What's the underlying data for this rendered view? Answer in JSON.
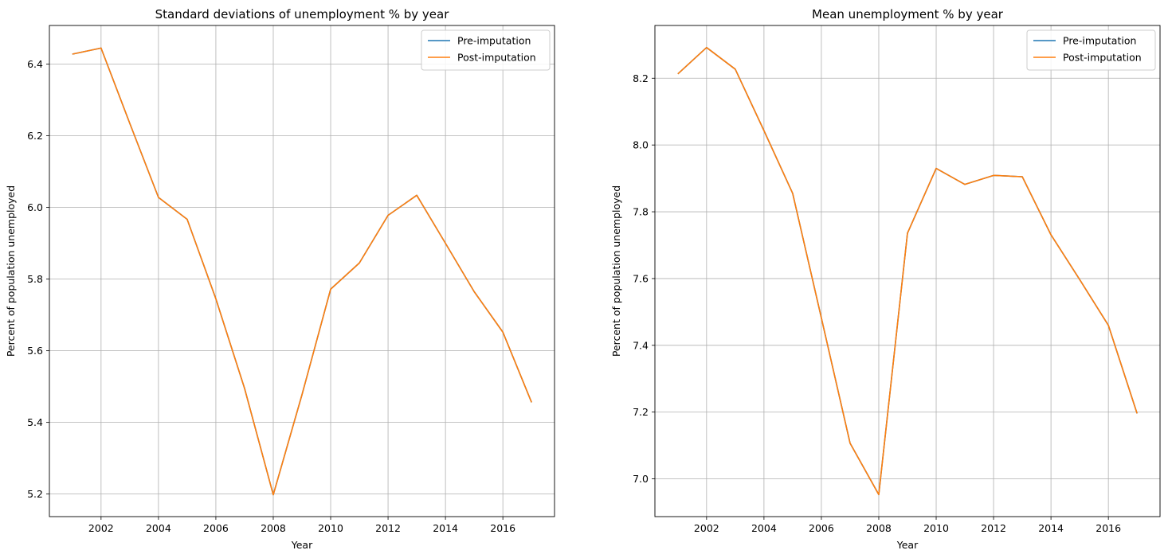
{
  "chart_data": [
    {
      "type": "line",
      "title": "Standard deviations of unemployment % by year",
      "xlabel": "Year",
      "ylabel": "Percent of population unemployed",
      "x": [
        2001,
        2002,
        2003,
        2004,
        2005,
        2006,
        2007,
        2008,
        2009,
        2010,
        2011,
        2012,
        2013,
        2014,
        2015,
        2016,
        2017
      ],
      "xticks": [
        2002,
        2004,
        2006,
        2008,
        2010,
        2012,
        2014,
        2016
      ],
      "yticks": [
        5.2,
        5.4,
        5.6,
        5.8,
        6.0,
        6.2,
        6.4
      ],
      "xlim": [
        2000.2,
        2017.8
      ],
      "ylim": [
        5.137,
        6.508
      ],
      "grid": true,
      "legend_position": "top-right",
      "series": [
        {
          "name": "Pre-imputation",
          "color": "#1f77b4",
          "values": [
            6.428,
            6.445,
            6.235,
            6.028,
            5.967,
            5.745,
            5.495,
            5.198,
            5.477,
            5.772,
            5.845,
            5.978,
            6.034,
            5.9,
            5.765,
            5.652,
            5.456
          ]
        },
        {
          "name": "Post-imputation",
          "color": "#ff7f0e",
          "values": [
            6.428,
            6.445,
            6.235,
            6.028,
            5.967,
            5.745,
            5.495,
            5.198,
            5.477,
            5.772,
            5.845,
            5.978,
            6.034,
            5.9,
            5.765,
            5.652,
            5.456
          ]
        }
      ]
    },
    {
      "type": "line",
      "title": "Mean unemployment % by year",
      "xlabel": "Year",
      "ylabel": "Percent of population unemployed",
      "x": [
        2001,
        2002,
        2003,
        2004,
        2005,
        2006,
        2007,
        2008,
        2009,
        2010,
        2011,
        2012,
        2013,
        2014,
        2015,
        2016,
        2017
      ],
      "xticks": [
        2002,
        2004,
        2006,
        2008,
        2010,
        2012,
        2014,
        2016
      ],
      "yticks": [
        7.0,
        7.2,
        7.4,
        7.6,
        7.8,
        8.0,
        8.2
      ],
      "xlim": [
        2000.2,
        2017.8
      ],
      "ylim": [
        6.887,
        8.358
      ],
      "grid": true,
      "legend_position": "top-right",
      "series": [
        {
          "name": "Pre-imputation",
          "color": "#1f77b4",
          "values": [
            8.213,
            8.292,
            8.227,
            8.043,
            7.855,
            7.482,
            7.107,
            6.953,
            7.736,
            7.93,
            7.882,
            7.909,
            7.905,
            7.731,
            7.597,
            7.46,
            7.196
          ]
        },
        {
          "name": "Post-imputation",
          "color": "#ff7f0e",
          "values": [
            8.213,
            8.292,
            8.227,
            8.043,
            7.855,
            7.482,
            7.107,
            6.953,
            7.736,
            7.93,
            7.882,
            7.909,
            7.905,
            7.731,
            7.597,
            7.46,
            7.196
          ]
        }
      ]
    }
  ]
}
